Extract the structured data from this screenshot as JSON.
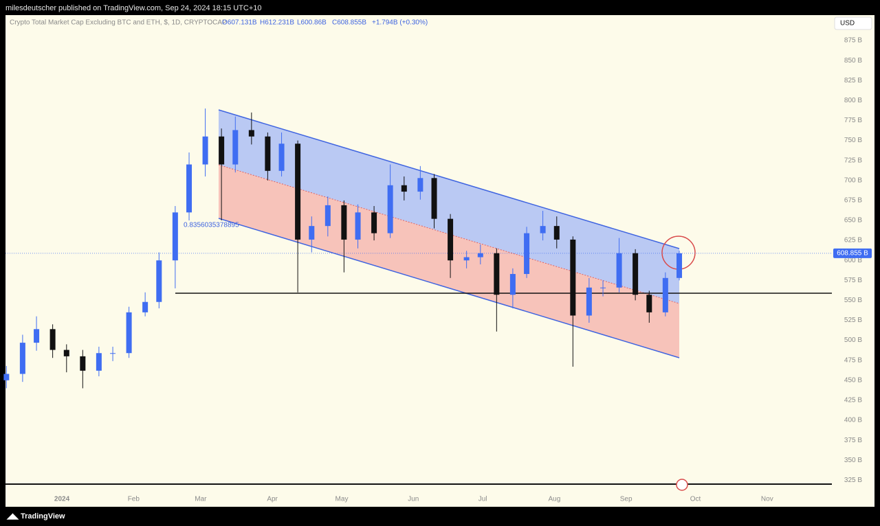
{
  "header": {
    "publisher": "milesdeutscher published on TradingView.com, Sep 24, 2024 18:15 UTC+10"
  },
  "legend": {
    "symbol": "Crypto Total Market Cap Excluding BTC and ETH, $, 1D, CRYPTOCAP",
    "open": "O607.131B",
    "high": "H612.231B",
    "low": "L600.86B",
    "close": "C608.855B",
    "change": "+1.794B (+0.30%)"
  },
  "currency_button": "USD",
  "fib_label": "0.8356035378895",
  "footer": "TradingView",
  "chart_data": {
    "type": "candlestick",
    "xlim": [
      -24.4,
      333
    ],
    "xticks": [
      {
        "value": 0,
        "label": "2024"
      },
      {
        "value": 31,
        "label": "Feb"
      },
      {
        "value": 60,
        "label": "Mar"
      },
      {
        "value": 91,
        "label": "Apr"
      },
      {
        "value": 121,
        "label": "May"
      },
      {
        "value": 152,
        "label": "Jun"
      },
      {
        "value": 182,
        "label": "Jul"
      },
      {
        "value": 213,
        "label": "Aug"
      },
      {
        "value": 244,
        "label": "Sep"
      },
      {
        "value": 274,
        "label": "Oct"
      },
      {
        "value": 305,
        "label": "Nov"
      }
    ],
    "ylim": [
      318.4,
      893.1
    ],
    "yticks": [
      {
        "value": 325,
        "label": "325 B"
      },
      {
        "value": 350,
        "label": "350 B"
      },
      {
        "value": 375,
        "label": "375 B"
      },
      {
        "value": 400,
        "label": "400 B"
      },
      {
        "value": 425,
        "label": "425 B"
      },
      {
        "value": 450,
        "label": "450 B"
      },
      {
        "value": 475,
        "label": "475 B"
      },
      {
        "value": 500,
        "label": "500 B"
      },
      {
        "value": 525,
        "label": "525 B"
      },
      {
        "value": 550,
        "label": "550 B"
      },
      {
        "value": 575,
        "label": "575 B"
      },
      {
        "value": 600,
        "label": "600 B"
      },
      {
        "value": 625,
        "label": "625 B"
      },
      {
        "value": 650,
        "label": "650 B"
      },
      {
        "value": 675,
        "label": "675 B"
      },
      {
        "value": 700,
        "label": "700 B"
      },
      {
        "value": 725,
        "label": "725 B"
      },
      {
        "value": 750,
        "label": "750 B"
      },
      {
        "value": 775,
        "label": "775 B"
      },
      {
        "value": 800,
        "label": "800 B"
      },
      {
        "value": 825,
        "label": "825 B"
      },
      {
        "value": 850,
        "label": "850 B"
      },
      {
        "value": 875,
        "label": "875 B"
      }
    ],
    "last_price": {
      "value": 608.855,
      "label": "608.855 B"
    },
    "up_color": "#3f6df2",
    "down_color": "#111111",
    "x": [
      -24,
      -17,
      -11,
      -4,
      2,
      9,
      16,
      22,
      29,
      36,
      42,
      49,
      55,
      62,
      69,
      75,
      82,
      89,
      95,
      102,
      108,
      115,
      122,
      128,
      135,
      142,
      148,
      155,
      161,
      168,
      175,
      181,
      188,
      195,
      201,
      208,
      214,
      221,
      228,
      234,
      241,
      248,
      254,
      261,
      267
    ],
    "open": [
      450,
      458,
      497,
      514,
      488,
      480,
      462,
      484,
      484,
      535,
      548,
      600,
      660,
      720,
      755,
      720,
      763,
      755,
      712,
      746,
      626,
      643,
      669,
      626,
      660,
      634,
      694,
      686,
      703,
      652,
      600,
      604,
      609,
      557,
      583,
      634,
      643,
      626,
      531,
      566,
      566,
      609,
      557,
      535,
      578
    ],
    "high": [
      468,
      507,
      530,
      520,
      495,
      488,
      492,
      492,
      542,
      560,
      610,
      668,
      735,
      790,
      765,
      780,
      785,
      760,
      760,
      750,
      655,
      680,
      675,
      670,
      668,
      720,
      705,
      718,
      708,
      658,
      612,
      620,
      615,
      590,
      642,
      662,
      655,
      630,
      578,
      575,
      628,
      614,
      562,
      585,
      612.231
    ],
    "low": [
      440,
      448,
      487,
      478,
      460,
      440,
      455,
      474,
      478,
      530,
      540,
      565,
      650,
      705,
      650,
      710,
      745,
      700,
      705,
      560,
      610,
      630,
      585,
      615,
      625,
      628,
      675,
      676,
      640,
      578,
      590,
      595,
      511,
      540,
      578,
      625,
      615,
      467,
      522,
      555,
      560,
      550,
      522,
      530,
      575
    ],
    "close": [
      458,
      497,
      514,
      488,
      480,
      462,
      484,
      484,
      535,
      548,
      600,
      660,
      720,
      755,
      720,
      763,
      755,
      712,
      746,
      626,
      643,
      669,
      626,
      660,
      634,
      694,
      686,
      703,
      652,
      600,
      604,
      609,
      557,
      583,
      634,
      643,
      626,
      531,
      566,
      566,
      609,
      557,
      535,
      578,
      608.855
    ]
  }
}
